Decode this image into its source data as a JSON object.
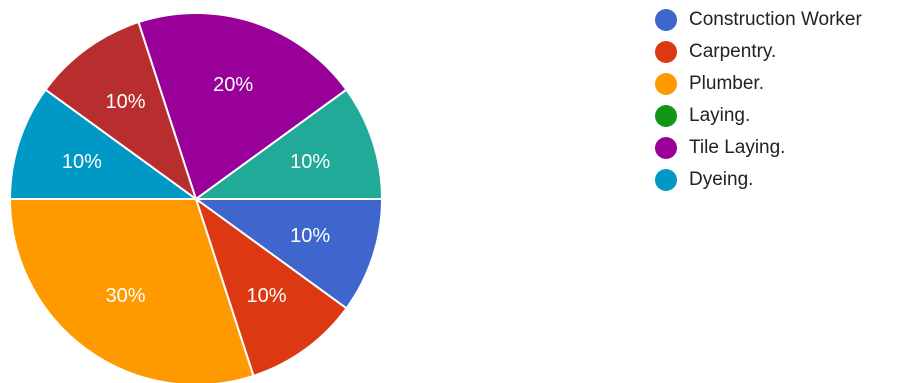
{
  "chart_data": {
    "type": "pie",
    "slices": [
      {
        "label": "Construction Worker",
        "value": 10,
        "display": "10%",
        "color": "#3F66CC"
      },
      {
        "label": "Carpentry.",
        "value": 10,
        "display": "10%",
        "color": "#DC3912"
      },
      {
        "label": "Plumber.",
        "value": 30,
        "display": "30%",
        "color": "#FF9900"
      },
      {
        "label": "Dyeing.",
        "value": 10,
        "display": "10%",
        "color": "#0099C6"
      },
      {
        "label": "",
        "value": 10,
        "display": "10%",
        "color": "#B82E2E"
      },
      {
        "label": "Tile Laying.",
        "value": 20,
        "display": "20%",
        "color": "#990099"
      },
      {
        "label": "",
        "value": 10,
        "display": "10%",
        "color": "#22AA99"
      }
    ],
    "legend": [
      {
        "label": "Construction Worker",
        "color": "#3F66CC"
      },
      {
        "label": "Carpentry.",
        "color": "#DC3912"
      },
      {
        "label": "Plumber.",
        "color": "#FF9900"
      },
      {
        "label": "Laying.",
        "color": "#109618"
      },
      {
        "label": "Tile Laying.",
        "color": "#990099"
      },
      {
        "label": "Dyeing.",
        "color": "#0099C6"
      }
    ],
    "legend_position": "right",
    "start_direction": "east",
    "direction": "clockwise"
  }
}
